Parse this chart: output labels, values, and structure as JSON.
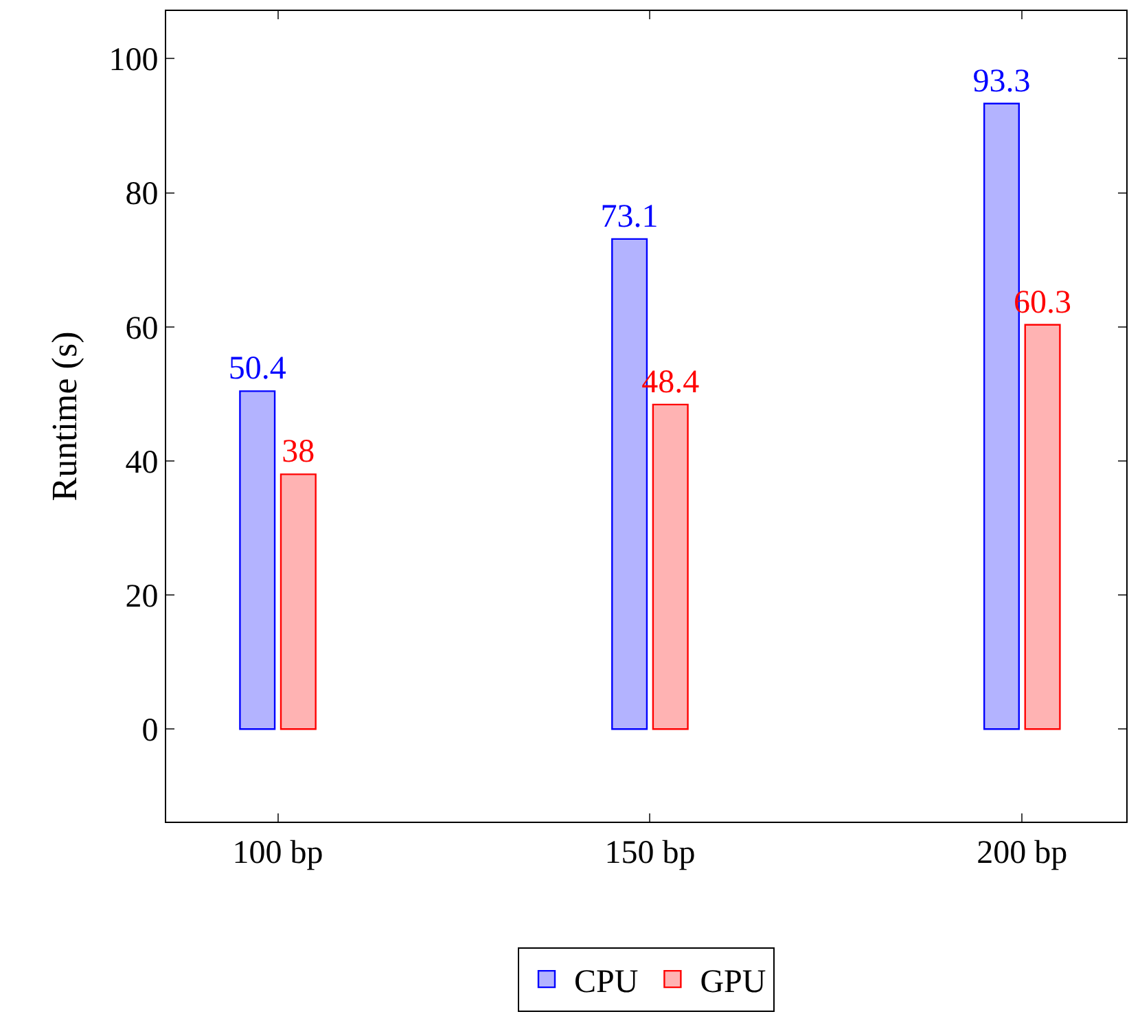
{
  "chart_data": {
    "type": "bar",
    "ylabel": "Runtime (s)",
    "categories": [
      "100 bp",
      "150 bp",
      "200 bp"
    ],
    "series": [
      {
        "name": "CPU",
        "color": "#b3b3ff",
        "values": [
          50.4,
          73.1,
          93.3
        ]
      },
      {
        "name": "GPU",
        "color": "#ffb3b3",
        "values": [
          38,
          48.4,
          60.3
        ]
      }
    ],
    "ylim": [
      -13.8,
      107.1
    ],
    "yticks": [
      0,
      20,
      40,
      60,
      80,
      100
    ],
    "data_labels": true,
    "legend": "bottom"
  }
}
